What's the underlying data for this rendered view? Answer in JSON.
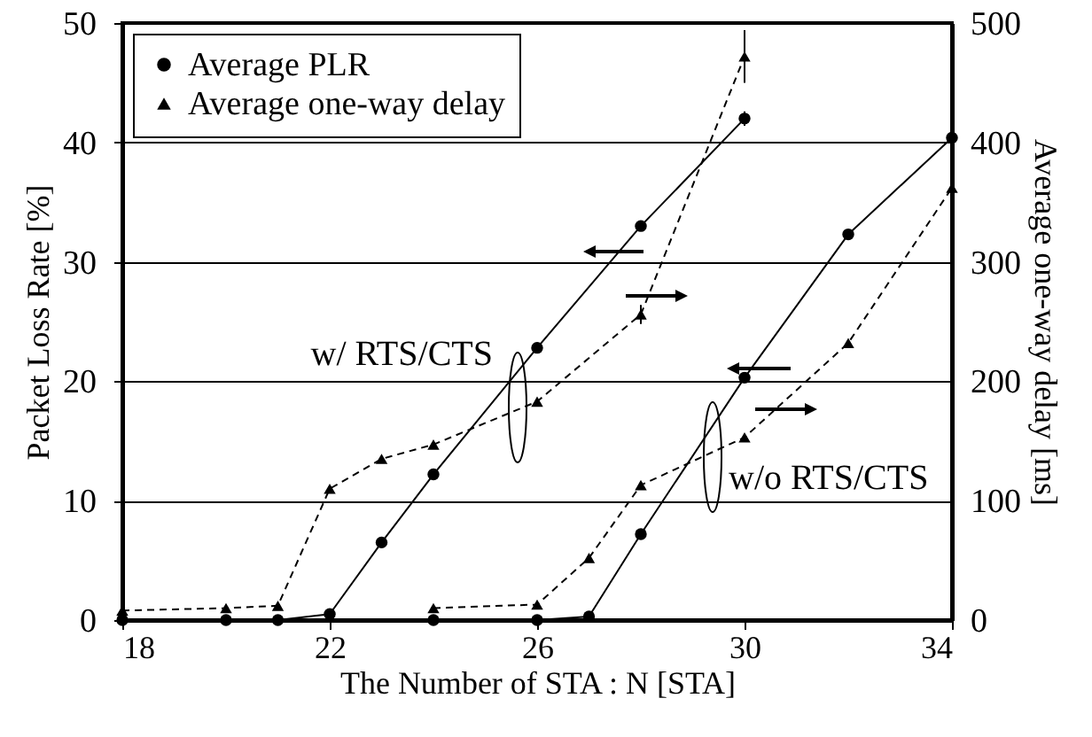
{
  "chart_data": {
    "type": "line",
    "xlabel": "The Number of STA : N [STA]",
    "ylabel": "Packet Loss Rate [%]",
    "y2label": "Average one-way delay [ms]",
    "xlim": [
      18,
      34
    ],
    "xticks": [
      18,
      22,
      26,
      30,
      34
    ],
    "ylim": [
      0,
      50
    ],
    "yticks": [
      0,
      10,
      20,
      30,
      40,
      50
    ],
    "y2lim": [
      0,
      500
    ],
    "y2ticks": [
      0,
      100,
      200,
      300,
      400,
      500
    ],
    "grid": "y",
    "legend": "top left",
    "series": [
      {
        "name": "Average PLR",
        "color": "#000000",
        "marker": "circle",
        "line_style": "solid",
        "x": [
          18,
          20,
          21,
          22,
          23,
          24,
          26,
          28,
          30
        ],
        "values": [
          0,
          0,
          0,
          0.5,
          6.5,
          12.2,
          22.8,
          33,
          42
        ],
        "errors": [
          null,
          null,
          null,
          null,
          null,
          null,
          null,
          null,
          0.6
        ]
      },
      {
        "name": "Average one-way delay",
        "axis": "y2",
        "color": "#000000",
        "marker": "triangle",
        "line_style": "dashed",
        "x": [
          18,
          20,
          21,
          22,
          23,
          24,
          26,
          28,
          30
        ],
        "values": [
          8,
          10,
          12,
          110,
          135,
          147,
          183,
          256,
          472
        ],
        "errors": [
          null,
          null,
          null,
          null,
          null,
          null,
          null,
          8,
          22
        ]
      },
      {
        "color": "#000000",
        "marker": "circle",
        "line_style": "solid",
        "x": [
          24,
          26,
          27,
          28,
          30,
          32,
          34
        ],
        "values": [
          0,
          0,
          0.3,
          7.2,
          20.3,
          32.3,
          40.4
        ]
      },
      {
        "axis": "y2",
        "color": "#000000",
        "marker": "triangle",
        "line_style": "dashed",
        "x": [
          24,
          26,
          27,
          28,
          30,
          32,
          34
        ],
        "values": [
          10,
          13,
          52,
          113,
          153,
          232,
          362
        ],
        "errors": [
          null,
          null,
          null,
          null,
          null,
          null,
          10
        ]
      }
    ],
    "annotations": [
      "w/ RTS/CTS",
      "w/o RTS/CTS"
    ]
  }
}
